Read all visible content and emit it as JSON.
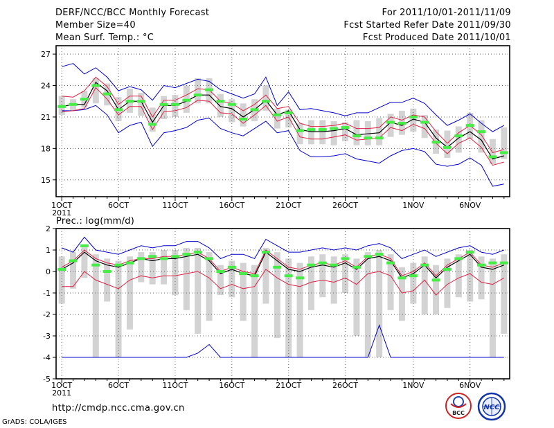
{
  "header": {
    "title": "DERF/NCC/BCC Monthly Forecast",
    "member_size": "Member Size=40",
    "variable": "Mean Surf. Temp.: °C",
    "period": "For 2011/10/01-2011/11/09",
    "started": "Fcst Started Refer Date 2011/09/30",
    "produced": "Fcst Produced Date 2011/10/01"
  },
  "footer": {
    "url": "http://cmdp.ncc.cma.gov.cn",
    "credit": "GrADS: COLA/IGES",
    "logo_left_text": "BCC",
    "logo_right_text": "NCC"
  },
  "colors": {
    "ensemble_box": "#d3d3d3",
    "median_bar": "#44ee44",
    "mean_line": "#000000",
    "inner_band": "#dd2244",
    "outer_band": "#0000cc",
    "grid": "#666666"
  },
  "chart_data": [
    {
      "type": "line",
      "title": "Mean Surf. Temp.: °C",
      "ylim": [
        13.4,
        27.8
      ],
      "yticks": [
        15,
        18,
        21,
        24,
        27
      ],
      "xlim": [
        0.5,
        40.5
      ],
      "xticks": [
        {
          "day": 1,
          "label": "1OCT",
          "sub": "2011"
        },
        {
          "day": 6,
          "label": "6OCT"
        },
        {
          "day": 11,
          "label": "11OCT"
        },
        {
          "day": 16,
          "label": "16OCT"
        },
        {
          "day": 21,
          "label": "21OCT"
        },
        {
          "day": 26,
          "label": "26OCT"
        },
        {
          "day": 32,
          "label": "1NOV"
        },
        {
          "day": 37,
          "label": "6NOV"
        }
      ],
      "mean": [
        22.0,
        22.2,
        22.2,
        24.3,
        23.5,
        21.7,
        22.5,
        22.5,
        20.5,
        22.1,
        22.1,
        22.5,
        23.1,
        23.1,
        22.0,
        21.8,
        21.0,
        21.7,
        22.6,
        21.2,
        21.6,
        19.8,
        19.6,
        19.6,
        19.7,
        19.9,
        19.3,
        19.4,
        19.5,
        20.5,
        20.2,
        20.8,
        20.5,
        19.0,
        18.1,
        19.0,
        19.6,
        18.8,
        17.0,
        17.3
      ],
      "inner_upper": [
        23.0,
        22.9,
        23.5,
        24.8,
        23.9,
        22.2,
        23.0,
        23.0,
        21.0,
        22.6,
        22.6,
        23.1,
        23.7,
        23.6,
        22.5,
        22.3,
        21.6,
        22.2,
        23.1,
        21.8,
        22.0,
        20.4,
        20.1,
        20.1,
        20.2,
        20.4,
        19.9,
        19.9,
        20.0,
        21.0,
        20.7,
        21.2,
        21.0,
        19.6,
        18.5,
        19.5,
        20.2,
        19.3,
        17.6,
        17.9
      ],
      "inner_lower": [
        21.5,
        21.6,
        21.8,
        23.8,
        22.7,
        21.2,
        22.0,
        22.0,
        19.8,
        21.5,
        21.6,
        21.9,
        22.6,
        22.5,
        21.4,
        21.3,
        20.4,
        21.2,
        22.1,
        20.6,
        21.0,
        19.1,
        18.9,
        18.9,
        19.1,
        19.3,
        18.8,
        18.9,
        19.0,
        20.0,
        19.7,
        20.3,
        19.9,
        18.5,
        17.5,
        18.5,
        19.0,
        18.1,
        16.4,
        16.7
      ],
      "outer_upper": [
        25.8,
        26.1,
        25.1,
        25.7,
        24.8,
        23.5,
        23.9,
        23.6,
        22.6,
        24.0,
        23.8,
        24.2,
        24.6,
        24.4,
        23.6,
        23.2,
        22.8,
        23.2,
        24.8,
        22.1,
        23.4,
        21.7,
        21.8,
        21.6,
        21.4,
        21.1,
        21.4,
        21.4,
        21.9,
        22.4,
        22.4,
        22.8,
        22.3,
        21.2,
        20.2,
        20.7,
        21.3,
        20.4,
        19.6,
        20.2
      ],
      "outer_lower": [
        21.6,
        21.6,
        21.7,
        22.1,
        21.2,
        19.5,
        20.2,
        20.5,
        18.2,
        19.5,
        19.7,
        20.0,
        20.7,
        20.9,
        19.9,
        19.5,
        19.2,
        19.9,
        20.6,
        19.5,
        19.7,
        17.8,
        17.2,
        17.2,
        17.3,
        17.5,
        17.0,
        16.8,
        16.6,
        17.3,
        17.8,
        18.0,
        17.7,
        16.5,
        16.3,
        16.5,
        17.1,
        16.4,
        14.4,
        14.6
      ],
      "box_upper": [
        23.0,
        22.7,
        23.5,
        24.7,
        24.2,
        22.9,
        23.7,
        23.3,
        21.9,
        23.0,
        23.1,
        24.0,
        24.7,
        24.7,
        23.2,
        22.7,
        22.3,
        22.7,
        24.0,
        21.8,
        21.7,
        20.4,
        20.7,
        20.7,
        20.6,
        20.5,
        20.7,
        20.6,
        20.9,
        21.3,
        21.6,
        21.8,
        21.2,
        19.8,
        19.7,
        20.1,
        21.4,
        20.7,
        18.9,
        20.0
      ],
      "box_lower": [
        21.2,
        21.6,
        21.9,
        22.3,
        22.1,
        20.6,
        21.4,
        21.1,
        19.6,
        20.8,
        21.0,
        21.4,
        22.3,
        22.3,
        21.0,
        20.5,
        20.1,
        20.6,
        21.6,
        19.9,
        20.0,
        18.4,
        18.4,
        18.4,
        18.3,
        18.7,
        18.3,
        18.3,
        18.3,
        19.1,
        19.3,
        19.6,
        19.0,
        17.5,
        17.1,
        17.6,
        18.9,
        17.6,
        16.5,
        17.0
      ],
      "median": [
        22.0,
        22.2,
        22.7,
        24.0,
        23.2,
        21.7,
        22.5,
        22.5,
        20.3,
        22.2,
        22.2,
        22.6,
        23.1,
        23.6,
        22.5,
        22.2,
        20.8,
        21.7,
        22.5,
        21.2,
        21.4,
        19.7,
        19.8,
        19.8,
        19.9,
        20.0,
        19.2,
        19.0,
        19.0,
        20.5,
        20.4,
        21.0,
        20.5,
        18.6,
        18.1,
        19.2,
        20.2,
        19.6,
        17.2,
        17.6
      ]
    },
    {
      "type": "line",
      "title": "Prec.: log(mm/d)",
      "ylim": [
        -5,
        2
      ],
      "yticks": [
        -5,
        -4,
        -3,
        -2,
        -1,
        0,
        1,
        2
      ],
      "xlim": [
        0.5,
        40.5
      ],
      "xticks": [
        {
          "day": 1,
          "label": "1OCT",
          "sub": "2011"
        },
        {
          "day": 6,
          "label": "6OCT"
        },
        {
          "day": 11,
          "label": "11OCT"
        },
        {
          "day": 16,
          "label": "16OCT"
        },
        {
          "day": 21,
          "label": "21OCT"
        },
        {
          "day": 26,
          "label": "26OCT"
        },
        {
          "day": 32,
          "label": "1NOV"
        },
        {
          "day": 37,
          "label": "6NOV"
        }
      ],
      "mean": [
        0.1,
        0.4,
        0.9,
        0.5,
        0.3,
        0.2,
        0.4,
        0.6,
        0.5,
        0.6,
        0.6,
        0.7,
        0.8,
        0.5,
        -0.1,
        0.1,
        -0.1,
        -0.2,
        0.9,
        0.5,
        0.1,
        0.0,
        0.2,
        0.3,
        0.2,
        0.4,
        0.1,
        0.6,
        0.7,
        0.5,
        -0.3,
        -0.1,
        0.3,
        -0.3,
        0.2,
        0.5,
        0.8,
        0.2,
        0.1,
        0.3
      ],
      "inner_upper": [
        0.2,
        0.5,
        1.0,
        0.6,
        0.4,
        0.3,
        0.5,
        0.6,
        0.6,
        0.7,
        0.7,
        0.8,
        0.9,
        0.6,
        0.0,
        0.2,
        0.0,
        -0.1,
        1.0,
        0.6,
        0.2,
        0.1,
        0.3,
        0.4,
        0.3,
        0.5,
        0.2,
        0.7,
        0.8,
        0.6,
        -0.2,
        0.0,
        0.4,
        -0.2,
        0.3,
        0.6,
        0.9,
        0.3,
        0.2,
        0.4
      ],
      "inner_lower": [
        -0.7,
        -0.7,
        0.0,
        -0.4,
        -0.6,
        -0.8,
        -0.4,
        -0.2,
        -0.3,
        -0.2,
        -0.2,
        -0.1,
        0.0,
        -0.3,
        -0.8,
        -0.6,
        -0.8,
        -0.7,
        0.1,
        -0.3,
        -0.6,
        -0.7,
        -0.5,
        -0.4,
        -0.5,
        -0.3,
        -0.6,
        -0.1,
        0.0,
        -0.2,
        -1.0,
        -0.9,
        -0.4,
        -1.1,
        -0.6,
        -0.3,
        -0.1,
        -0.5,
        -0.6,
        -0.3
      ],
      "outer_upper": [
        1.1,
        0.9,
        1.6,
        1.0,
        0.9,
        0.8,
        1.0,
        1.2,
        1.1,
        1.2,
        1.2,
        1.4,
        1.4,
        1.1,
        0.6,
        0.8,
        0.8,
        0.6,
        1.5,
        1.2,
        0.9,
        0.9,
        1.0,
        1.1,
        1.0,
        1.1,
        1.0,
        1.2,
        1.3,
        1.1,
        0.6,
        0.8,
        1.0,
        0.7,
        0.9,
        1.1,
        1.2,
        0.9,
        0.8,
        1.0
      ],
      "outer_lower": [
        -4.0,
        -4.0,
        -4.0,
        -4.0,
        -4.0,
        -4.0,
        -4.0,
        -4.0,
        -4.0,
        -4.0,
        -4.0,
        -4.0,
        -3.8,
        -3.4,
        -4.0,
        -4.0,
        -4.0,
        -4.0,
        -4.0,
        -4.0,
        -4.0,
        -4.0,
        -4.0,
        -4.0,
        -4.0,
        -4.0,
        -4.0,
        -4.0,
        -2.5,
        -4.0,
        -4.0,
        -4.0,
        -4.0,
        -4.0,
        -4.0,
        -4.0,
        -4.0,
        -4.0,
        -4.0,
        -4.0
      ],
      "box_upper": [
        0.7,
        0.9,
        1.2,
        0.8,
        0.6,
        0.5,
        0.7,
        0.9,
        0.9,
        1.0,
        1.0,
        1.1,
        1.1,
        0.9,
        0.3,
        0.5,
        0.4,
        0.3,
        1.1,
        0.9,
        0.6,
        0.4,
        0.7,
        0.8,
        0.7,
        0.8,
        0.6,
        0.9,
        1.0,
        0.8,
        0.2,
        0.4,
        0.7,
        0.3,
        0.6,
        0.8,
        1.0,
        0.7,
        0.6,
        0.8
      ],
      "box_lower": [
        -1.5,
        -0.8,
        -0.3,
        -4.0,
        -1.4,
        -4.0,
        -2.7,
        -0.5,
        -0.6,
        -0.6,
        -1.1,
        -1.8,
        -2.9,
        -2.3,
        -1.1,
        -1.2,
        -2.3,
        -4.0,
        -1.5,
        -3.1,
        -4.0,
        -4.0,
        -1.8,
        -1.2,
        -1.5,
        -1.0,
        -3.0,
        -4.0,
        -4.0,
        -1.8,
        -2.3,
        -1.5,
        -2.0,
        -2.0,
        -1.7,
        -1.2,
        -1.4,
        -1.3,
        -4.0,
        -2.9
      ],
      "median": [
        0.1,
        0.5,
        1.2,
        0.3,
        0.0,
        0.3,
        0.4,
        0.6,
        0.7,
        0.6,
        0.7,
        0.8,
        0.9,
        0.6,
        0.0,
        0.2,
        -0.1,
        -0.2,
        0.9,
        0.2,
        -0.2,
        -0.3,
        0.3,
        0.4,
        0.3,
        0.6,
        0.2,
        0.7,
        0.8,
        0.4,
        -0.3,
        -0.2,
        0.3,
        -0.4,
        0.1,
        0.6,
        0.9,
        0.3,
        0.4,
        0.4
      ]
    }
  ]
}
